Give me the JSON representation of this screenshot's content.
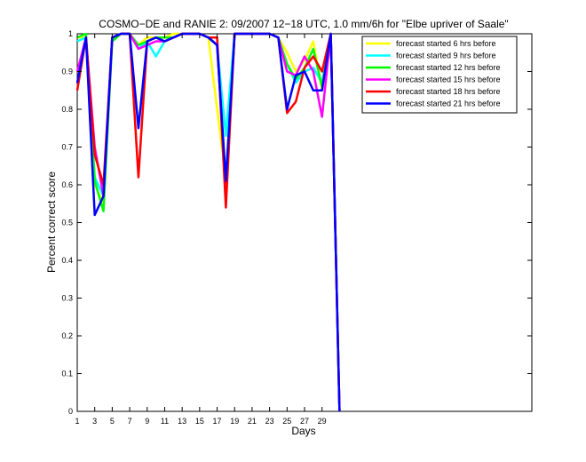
{
  "chart_data": {
    "type": "line",
    "title": "COSMO−DE and RANIE 2: 09/2007 12−18 UTC, 1.0 mm/6h for \"Elbe upriver of Saale\"",
    "xlabel": "Days",
    "ylabel": "Percent correct score",
    "xlim": [
      1,
      53
    ],
    "ylim": [
      0,
      1
    ],
    "xticks": [
      1,
      3,
      5,
      7,
      9,
      11,
      13,
      15,
      17,
      19,
      21,
      23,
      25,
      27,
      29
    ],
    "yticks": [
      0,
      0.1,
      0.2,
      0.3,
      0.4,
      0.5,
      0.6,
      0.7,
      0.8,
      0.9,
      1
    ],
    "ytick_labels": [
      "0",
      "0.1",
      "0.2",
      "0.3",
      "0.4",
      "0.5",
      "0.6",
      "0.7",
      "0.8",
      "0.9",
      "1"
    ],
    "grid": false,
    "legend_position": "top-right",
    "x": [
      1,
      2,
      3,
      4,
      5,
      6,
      7,
      8,
      9,
      10,
      11,
      12,
      13,
      14,
      15,
      16,
      17,
      18,
      19,
      20,
      21,
      22,
      23,
      24,
      25,
      26,
      27,
      28,
      29,
      30,
      31
    ],
    "series": [
      {
        "name": "forecast started 6 hrs before",
        "color": "#ffff00",
        "values": [
          0.99,
          0.99,
          0.6,
          0.55,
          0.99,
          1.0,
          1.0,
          0.97,
          0.99,
          0.99,
          0.99,
          1.0,
          1.0,
          1.0,
          1.0,
          0.99,
          0.8,
          0.62,
          1.0,
          1.0,
          1.0,
          1.0,
          1.0,
          0.99,
          0.95,
          0.9,
          0.93,
          0.98,
          0.85,
          1.0,
          0.0
        ]
      },
      {
        "name": "forecast started 9 hrs before",
        "color": "#00ffff",
        "values": [
          0.98,
          0.99,
          0.62,
          0.57,
          0.99,
          1.0,
          1.0,
          0.96,
          0.98,
          0.94,
          0.98,
          0.99,
          1.0,
          1.0,
          1.0,
          0.99,
          0.97,
          0.73,
          1.0,
          1.0,
          1.0,
          1.0,
          1.0,
          0.99,
          0.92,
          0.87,
          0.9,
          0.91,
          0.87,
          1.0,
          0.0
        ]
      },
      {
        "name": "forecast started 12 hrs before",
        "color": "#00ff00",
        "values": [
          0.99,
          1.0,
          0.61,
          0.53,
          0.98,
          1.0,
          1.0,
          0.97,
          0.98,
          0.99,
          0.99,
          0.99,
          1.0,
          1.0,
          1.0,
          0.99,
          0.97,
          0.6,
          1.0,
          1.0,
          1.0,
          1.0,
          1.0,
          0.99,
          0.92,
          0.88,
          0.91,
          0.96,
          0.86,
          1.0,
          0.0
        ]
      },
      {
        "name": "forecast started 15 hrs before",
        "color": "#ff00ff",
        "values": [
          0.9,
          0.99,
          0.7,
          0.57,
          0.99,
          1.0,
          1.0,
          0.96,
          0.97,
          0.98,
          0.98,
          0.99,
          1.0,
          1.0,
          1.0,
          0.99,
          0.97,
          0.59,
          1.0,
          1.0,
          1.0,
          1.0,
          1.0,
          0.99,
          0.9,
          0.89,
          0.94,
          0.9,
          0.78,
          1.0,
          0.0
        ]
      },
      {
        "name": "forecast started 18 hrs before",
        "color": "#ff0000",
        "values": [
          0.85,
          0.99,
          0.68,
          0.6,
          0.99,
          1.0,
          1.0,
          0.62,
          0.98,
          0.99,
          0.98,
          0.99,
          1.0,
          1.0,
          1.0,
          0.99,
          0.99,
          0.54,
          1.0,
          1.0,
          1.0,
          1.0,
          1.0,
          0.99,
          0.79,
          0.82,
          0.91,
          0.94,
          0.9,
          1.0,
          0.0
        ]
      },
      {
        "name": "forecast started 21 hrs before",
        "color": "#0000ff",
        "values": [
          0.87,
          0.99,
          0.52,
          0.57,
          0.99,
          1.0,
          1.0,
          0.75,
          0.98,
          0.99,
          0.98,
          0.99,
          1.0,
          1.0,
          1.0,
          0.99,
          0.97,
          0.61,
          1.0,
          1.0,
          1.0,
          1.0,
          1.0,
          0.99,
          0.8,
          0.89,
          0.9,
          0.85,
          0.85,
          1.0,
          0.0
        ]
      }
    ]
  }
}
